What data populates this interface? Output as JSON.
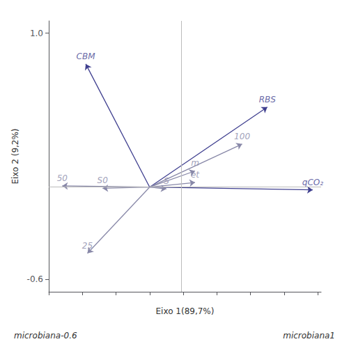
{
  "chart_data": {
    "type": "biplot",
    "xlabel": "Eixo 1(89,7%)",
    "ylabel": "Eixo 2 (9,2%)",
    "annotations": [
      "microbiana-0.6",
      "microbiana1"
    ],
    "xlim": [
      -0.6,
      1.02
    ],
    "ylim": [
      -0.68,
      1.08
    ],
    "xticks": [
      -0.6,
      -0.4,
      -0.2,
      0.0,
      0.2,
      0.4,
      0.6,
      0.8,
      1.0
    ],
    "yticks": [
      -0.6,
      {
        "value": 1.0,
        "label": "1.0"
      }
    ],
    "tick_labels": "y",
    "grid": false,
    "origin": [
      0,
      0
    ],
    "vlines": [
      0.19
    ],
    "hlines": [
      0
    ],
    "series": [
      {
        "color": "#3f3f8f",
        "labels": [
          "CBM",
          "qCO₂",
          "RBS"
        ],
        "x": [
          -0.38,
          0.97,
          0.7
        ],
        "y": [
          0.8,
          -0.018,
          0.52
        ]
      },
      {
        "color": "#8888a8",
        "labels": [
          "S0",
          "S",
          "50",
          "25",
          "100",
          "m",
          "et"
        ],
        "x": [
          -0.28,
          0.1,
          -0.52,
          -0.37,
          0.55,
          0.27,
          0.27
        ],
        "y": [
          -0.008,
          -0.012,
          0.008,
          -0.43,
          0.28,
          0.105,
          0.03
        ]
      }
    ]
  }
}
